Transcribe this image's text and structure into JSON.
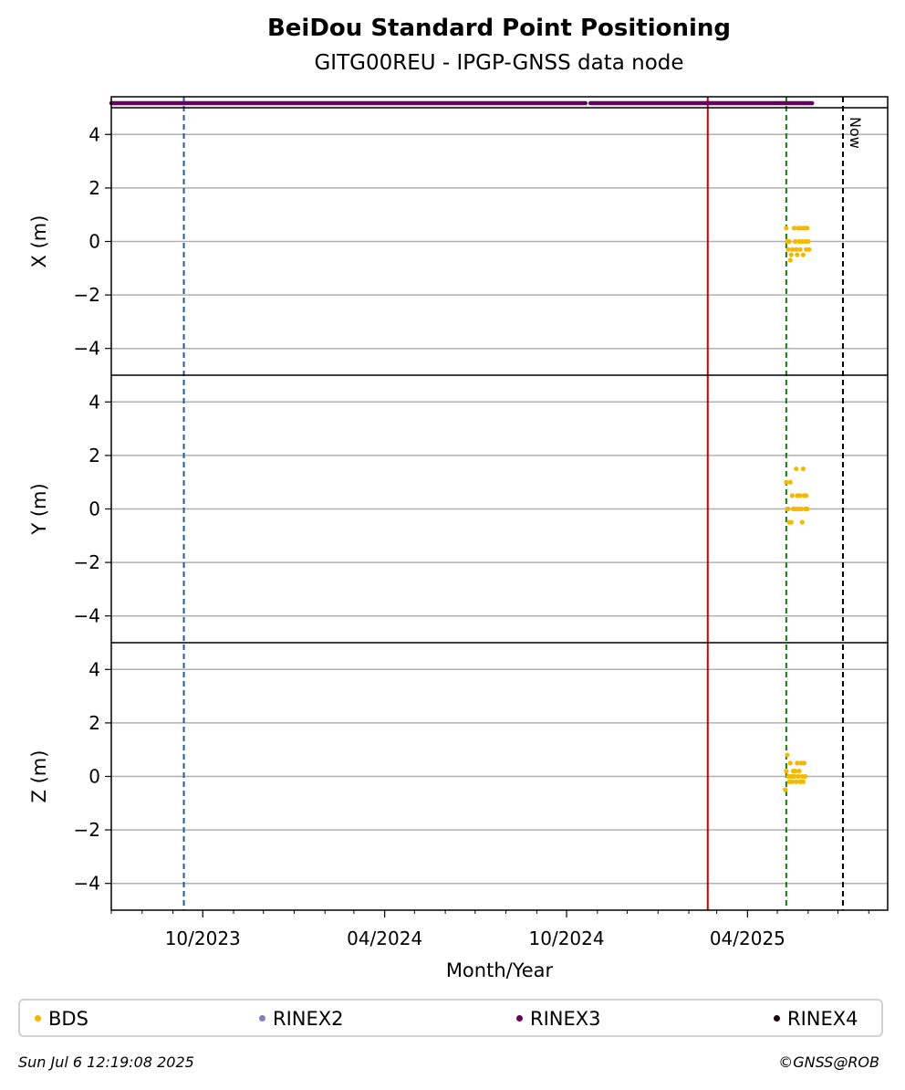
{
  "chart_data": {
    "type": "scatter",
    "title": "BeiDou Standard Point Positioning",
    "subtitle": "GITG00REU - IPGP-GNSS data node",
    "xlabel": "Month/Year",
    "x_ticks": [
      "10/2023",
      "04/2024",
      "10/2024",
      "04/2025"
    ],
    "xlim": [
      "2023-07-01",
      "2025-08-20"
    ],
    "ylim": [
      -5,
      5
    ],
    "y_ticks": [
      "4",
      "2",
      "0",
      "−2",
      "−4"
    ],
    "grid": "horizontal",
    "vlines": [
      {
        "date": "2023-09-12",
        "color": "#1f5aa6",
        "style": "dashed"
      },
      {
        "date": "2025-02-20",
        "color": "#cc0000",
        "style": "solid"
      },
      {
        "date": "2025-05-10",
        "color": "#108010",
        "style": "dashed"
      },
      {
        "date": "2025-07-06",
        "color": "#000000",
        "style": "dashed",
        "label": "Now"
      }
    ],
    "rinex_segments": [
      {
        "series": "RINEX3",
        "start": "2023-07-01",
        "end": "2024-10-20"
      },
      {
        "series": "RINEX3",
        "start": "2024-10-25",
        "end": "2025-06-05"
      }
    ],
    "panels": [
      {
        "ylabel": "X (m)",
        "series": "BDS",
        "points": [
          [
            "2025-05-10",
            0.5
          ],
          [
            "2025-05-11",
            0
          ],
          [
            "2025-05-12",
            -0.3
          ],
          [
            "2025-05-13",
            0
          ],
          [
            "2025-05-14",
            -0.7
          ],
          [
            "2025-05-15",
            -0.5
          ],
          [
            "2025-05-16",
            -0.3
          ],
          [
            "2025-05-18",
            0.5
          ],
          [
            "2025-05-19",
            0
          ],
          [
            "2025-05-20",
            -0.3
          ],
          [
            "2025-05-21",
            -0.5
          ],
          [
            "2025-05-22",
            0.5
          ],
          [
            "2025-05-23",
            0
          ],
          [
            "2025-05-24",
            -0.3
          ],
          [
            "2025-05-25",
            0.5
          ],
          [
            "2025-05-26",
            0
          ],
          [
            "2025-05-27",
            -0.5
          ],
          [
            "2025-05-28",
            0.5
          ],
          [
            "2025-05-29",
            0
          ],
          [
            "2025-05-30",
            -0.3
          ],
          [
            "2025-05-31",
            0.5
          ],
          [
            "2025-06-01",
            0
          ],
          [
            "2025-06-02",
            -0.3
          ]
        ]
      },
      {
        "ylabel": "Y (m)",
        "series": "BDS",
        "points": [
          [
            "2025-05-10",
            1.0
          ],
          [
            "2025-05-11",
            0
          ],
          [
            "2025-05-12",
            0
          ],
          [
            "2025-05-13",
            -0.5
          ],
          [
            "2025-05-14",
            1.0
          ],
          [
            "2025-05-15",
            -0.5
          ],
          [
            "2025-05-16",
            0.5
          ],
          [
            "2025-05-17",
            0
          ],
          [
            "2025-05-19",
            0
          ],
          [
            "2025-05-20",
            1.5
          ],
          [
            "2025-05-21",
            0.5
          ],
          [
            "2025-05-22",
            0
          ],
          [
            "2025-05-24",
            0.5
          ],
          [
            "2025-05-25",
            0
          ],
          [
            "2025-05-26",
            -0.5
          ],
          [
            "2025-05-27",
            1.5
          ],
          [
            "2025-05-28",
            0.5
          ],
          [
            "2025-05-29",
            0
          ],
          [
            "2025-05-30",
            0.5
          ],
          [
            "2025-05-31",
            0
          ]
        ]
      },
      {
        "ylabel": "Z (m)",
        "series": "BDS",
        "points": [
          [
            "2025-05-09",
            -0.5
          ],
          [
            "2025-05-10",
            0.2
          ],
          [
            "2025-05-11",
            0.8
          ],
          [
            "2025-05-12",
            0
          ],
          [
            "2025-05-13",
            -0.2
          ],
          [
            "2025-05-14",
            0.5
          ],
          [
            "2025-05-15",
            0
          ],
          [
            "2025-05-16",
            -0.2
          ],
          [
            "2025-05-17",
            0.2
          ],
          [
            "2025-05-18",
            0
          ],
          [
            "2025-05-19",
            0.2
          ],
          [
            "2025-05-20",
            -0.2
          ],
          [
            "2025-05-21",
            0.5
          ],
          [
            "2025-05-22",
            0
          ],
          [
            "2025-05-23",
            0.2
          ],
          [
            "2025-05-24",
            -0.2
          ],
          [
            "2025-05-25",
            0.5
          ],
          [
            "2025-05-26",
            0
          ],
          [
            "2025-05-27",
            -0.2
          ],
          [
            "2025-05-28",
            0.5
          ],
          [
            "2025-05-29",
            0
          ]
        ]
      }
    ]
  },
  "legend": [
    {
      "label": "BDS",
      "color": "#f5b800"
    },
    {
      "label": "RINEX2",
      "color": "#8080c0"
    },
    {
      "label": "RINEX3",
      "color": "#66005e"
    },
    {
      "label": "RINEX4",
      "color": "#1a0a10"
    }
  ],
  "footer": {
    "date": "Sun Jul  6 12:19:08 2025",
    "copyright": "©GNSS@ROB"
  }
}
